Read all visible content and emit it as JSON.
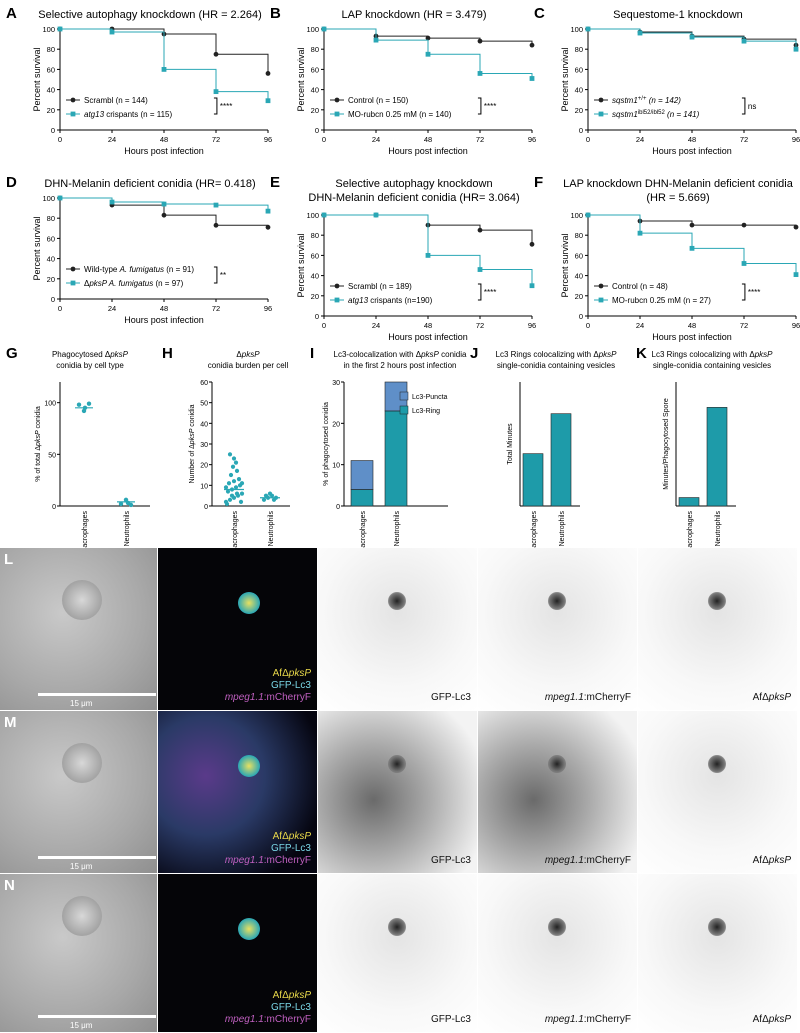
{
  "survival_panels": [
    {
      "letter": "A",
      "title": "Selective autophagy knockdown (HR = 2.264)",
      "ylabel": "Percent survival",
      "xlabel": "Hours post infection",
      "series": [
        {
          "name": "Scrambl (n = 144)",
          "color": "#222222",
          "values": [
            100,
            100,
            95,
            75,
            56
          ]
        },
        {
          "name_parts": [
            "",
            "atg13",
            " crispants (n = 115)"
          ],
          "color": "#2aa7b5",
          "values": [
            100,
            97,
            60,
            38,
            29
          ]
        }
      ],
      "sig": "****"
    },
    {
      "letter": "B",
      "title": "LAP knockdown (HR = 3.479)",
      "ylabel": "Percent survival",
      "xlabel": "Hours post infection",
      "series": [
        {
          "name": "Control (n = 150)",
          "color": "#222222",
          "values": [
            100,
            93,
            91,
            88,
            84
          ]
        },
        {
          "name": "MO-rubcn 0.25 mM (n = 140)",
          "color": "#2aa7b5",
          "values": [
            100,
            89,
            75,
            56,
            51
          ]
        }
      ],
      "sig": "****"
    },
    {
      "letter": "C",
      "title": "Sequestome-1 knockdown",
      "ylabel": "Percent survival",
      "xlabel": "Hours post infection",
      "series": [
        {
          "name_parts": [
            "",
            "sqstm1",
            "+/+",
            " (n = 142)"
          ],
          "color": "#222222",
          "values": [
            100,
            97,
            93,
            90,
            84
          ]
        },
        {
          "name_parts": [
            "",
            "sqstm1",
            "ibl52/ibl52",
            " (n = 141)"
          ],
          "color": "#2aa7b5",
          "values": [
            100,
            96,
            92,
            88,
            80
          ]
        }
      ],
      "sig": "ns"
    },
    {
      "letter": "D",
      "title": "DHN-Melanin deficient conidia (HR= 0.418)",
      "ylabel": "Percent survival",
      "xlabel": "Hours post infection",
      "series": [
        {
          "name_parts": [
            "Wild-type ",
            "A. fumigatus",
            " (n = 91)"
          ],
          "color": "#222222",
          "values": [
            100,
            93,
            83,
            73,
            71
          ]
        },
        {
          "name_parts": [
            "Δ",
            "pksP A. fumigatus",
            " (n = 97)"
          ],
          "color": "#2aa7b5",
          "values": [
            100,
            96,
            94,
            93,
            87
          ]
        }
      ],
      "sig": "**"
    },
    {
      "letter": "E",
      "title": "Selective autophagy knockdown",
      "title2": "DHN-Melanin deficient conidia (HR= 3.064)",
      "ylabel": "Percent survival",
      "xlabel": "Hours post infection",
      "series": [
        {
          "name": "Scrambl (n = 189)",
          "color": "#222222",
          "values": [
            100,
            100,
            90,
            85,
            71
          ]
        },
        {
          "name_parts": [
            "",
            "atg13",
            " crispants (n=190)"
          ],
          "color": "#2aa7b5",
          "values": [
            100,
            100,
            60,
            46,
            30
          ]
        }
      ],
      "sig": "****"
    },
    {
      "letter": "F",
      "title": "LAP knockdown DHN-Melanin deficient conidia",
      "title2": "(HR = 5.669)",
      "ylabel": "Percent survival",
      "xlabel": "Hours post infection",
      "series": [
        {
          "name": "Control (n = 48)",
          "color": "#222222",
          "values": [
            100,
            94,
            90,
            90,
            88
          ]
        },
        {
          "name": "MO-rubcn 0.25 mM (n = 27)",
          "color": "#2aa7b5",
          "values": [
            100,
            82,
            67,
            52,
            41
          ]
        }
      ],
      "sig": "****"
    }
  ],
  "x_ticks": [
    "0",
    "24",
    "48",
    "72",
    "96"
  ],
  "y_ticks": [
    "0",
    "20",
    "40",
    "60",
    "80",
    "100"
  ],
  "bottom_panels": {
    "G": {
      "letter": "G",
      "title_parts": [
        "Phagocytosed Δ",
        "pksP",
        ""
      ],
      "title2": "conidia by cell type",
      "ylabel_parts": [
        "% of total Δ",
        "pksP",
        " conidia"
      ],
      "yticks": [
        "0",
        "50",
        "100"
      ],
      "cats": [
        "Macrophages",
        "Neutrophils"
      ],
      "means": [
        95,
        4
      ]
    },
    "H": {
      "letter": "H",
      "title_parts": [
        "Δ",
        "pksP",
        ""
      ],
      "title2": "conidia burden per cell",
      "ylabel_parts": [
        "Number of Δ",
        "pksP",
        " conidia"
      ],
      "yticks": [
        "0",
        "10",
        "20",
        "30",
        "40",
        "50",
        "60"
      ],
      "cats": [
        "Macrophages",
        "Neutrophils"
      ],
      "means": [
        8,
        4
      ]
    },
    "I": {
      "letter": "I",
      "title_parts": [
        "Lc3-colocalization with Δ",
        "pksP",
        " conidia"
      ],
      "title2": "in the first 2 hours post infection",
      "ylabel": "% of phagocytosed conidia",
      "yticks": [
        "0",
        "10",
        "20",
        "30"
      ],
      "cats": [
        "Macrophages",
        "Neutrophils"
      ],
      "stack": [
        {
          "name": "Lc3-Puncta",
          "color": "#5f8fc8",
          "values": [
            7,
            7
          ]
        },
        {
          "name": "Lc3-Ring",
          "color": "#1e9ba9",
          "values": [
            4,
            23
          ]
        }
      ]
    },
    "J": {
      "letter": "J",
      "title_parts": [
        "Lc3 Rings colocalizing with Δ",
        "pksP",
        ""
      ],
      "title2": "single-conidia containing vesicles",
      "ylabel": "Total Minutes",
      "yticks": [],
      "cats": [
        "Macrophages",
        "Neutrophils"
      ],
      "values": [
        38,
        67
      ]
    },
    "K": {
      "letter": "K",
      "title_parts": [
        "Lc3 Rings colocalizing with Δ",
        "pksP",
        ""
      ],
      "title2": "single-conidia containing vesicles",
      "ylabel": "Minutes/Phagocytosed Spore",
      "yticks": [],
      "cats": [
        "Macrophages",
        "Neutrophils"
      ],
      "values": [
        0.15,
        1.75
      ]
    }
  },
  "micro_rows": [
    {
      "letter": "L",
      "scalebar": "15 μm",
      "merge": [
        "AfΔ",
        "pksP",
        "GFP-Lc3",
        "mpeg1.1",
        ":mCherryF"
      ],
      "ch": [
        "GFP-Lc3",
        "mpeg1.1",
        ":mCherryF",
        "AfΔ",
        "pksP"
      ]
    },
    {
      "letter": "M",
      "scalebar": "15 μm",
      "merge": [
        "AfΔ",
        "pksP",
        "GFP-Lc3",
        "mpeg1.1",
        ":mCherryF"
      ],
      "ch": [
        "GFP-Lc3",
        "mpeg1.1",
        ":mCherryF",
        "AfΔ",
        "pksP"
      ]
    },
    {
      "letter": "N",
      "scalebar": "15 μm",
      "merge": [
        "AfΔ",
        "pksP",
        "GFP-Lc3",
        "mpeg1.1",
        ":mCherryF"
      ],
      "ch": [
        "GFP-Lc3",
        "mpeg1.1",
        ":mCherryF",
        "AfΔ",
        "pksP"
      ]
    }
  ],
  "colors": {
    "black_series": "#222222",
    "teal_series": "#2aa7b5",
    "puncta": "#5f8fc8",
    "ring": "#1e9ba9"
  }
}
